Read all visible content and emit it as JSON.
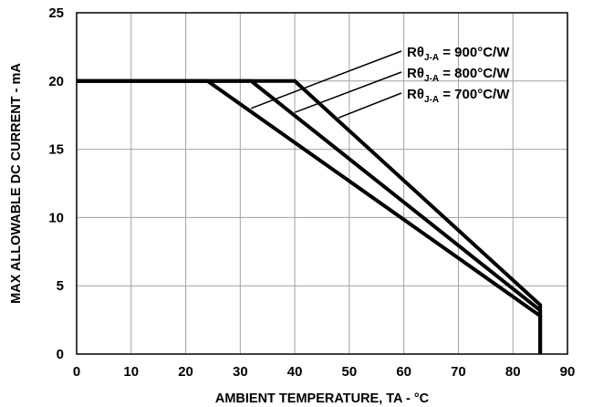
{
  "chart_data": {
    "type": "line",
    "title": "",
    "xlabel": "AMBIENT TEMPERATURE, TA - °C",
    "ylabel": "MAX ALLOWABLE DC CURRENT - mA",
    "xlim": [
      0,
      90
    ],
    "ylim": [
      0,
      25
    ],
    "xticks": [
      0,
      10,
      20,
      30,
      40,
      50,
      60,
      70,
      80,
      90
    ],
    "yticks": [
      0,
      5,
      10,
      15,
      20,
      25
    ],
    "grid": true,
    "series": [
      {
        "name_prefix": "Rθ",
        "name_sub": "J-A",
        "name_suffix": " = 900°C/W",
        "points": [
          [
            0,
            20
          ],
          [
            24,
            20
          ],
          [
            85,
            2.8
          ],
          [
            85,
            0
          ]
        ]
      },
      {
        "name_prefix": "Rθ",
        "name_sub": "J-A",
        "name_suffix": " = 800°C/W",
        "points": [
          [
            0,
            20
          ],
          [
            32,
            20
          ],
          [
            85,
            3.2
          ],
          [
            85,
            0
          ]
        ]
      },
      {
        "name_prefix": "Rθ",
        "name_sub": "J-A",
        "name_suffix": " = 700°C/W",
        "points": [
          [
            0,
            20
          ],
          [
            40,
            20
          ],
          [
            85,
            3.6
          ],
          [
            85,
            0
          ]
        ]
      }
    ],
    "annotation_targets": [
      [
        32,
        18
      ],
      [
        40,
        17.7
      ],
      [
        48,
        17.3
      ]
    ]
  }
}
